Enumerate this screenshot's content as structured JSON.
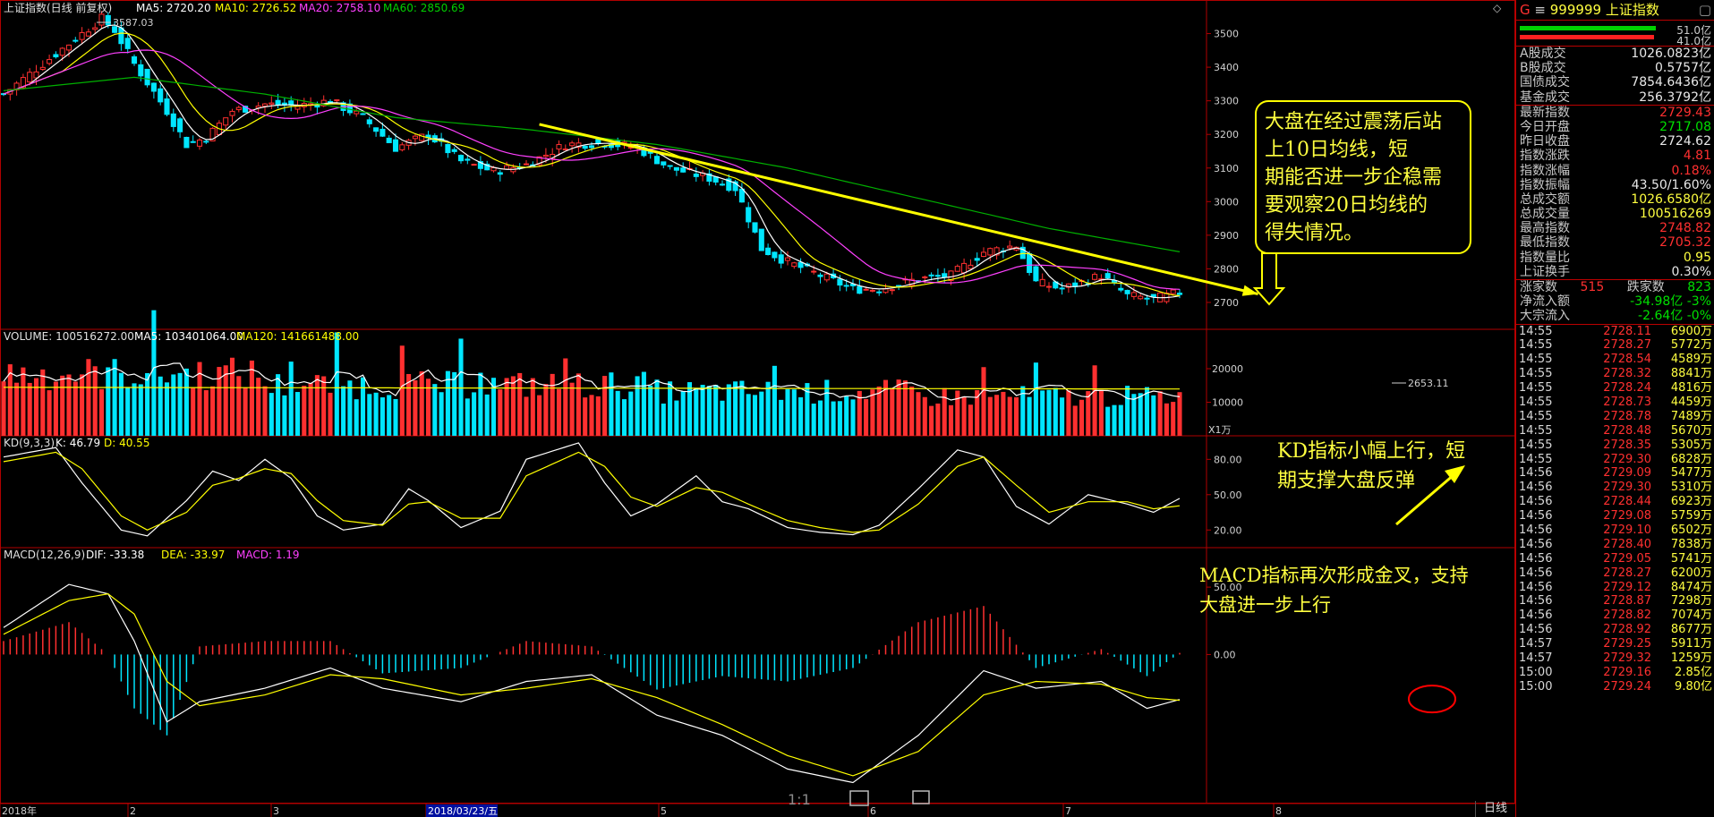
{
  "header": {
    "index_name": "上证指数(日线 前复权)",
    "ma5": "MA5: 2720.20",
    "ma10": "MA10: 2726.52",
    "ma20": "MA20: 2758.10",
    "ma60": "MA60: 2850.69",
    "high_marker": "3587.03",
    "low_marker": "2653.11"
  },
  "volume_header": {
    "volume": "VOLUME: 100516272.00",
    "ma5": "MA5: 103401064.00",
    "ma120": "MA120: 141661488.00",
    "unit": "X1万"
  },
  "kd_header": {
    "name": "KD(9,3,3)",
    "k": "K: 46.79",
    "d": "D: 40.55"
  },
  "macd_header": {
    "name": "MACD(12,26,9)",
    "dif": "DIF: -33.38",
    "dea": "DEA: -33.97",
    "macd": "MACD: 1.19"
  },
  "annotations": {
    "main": "大盘在经过震荡后站上10日均线，短期能否进一步企稳需要观察20日均线的得失情况。",
    "kd": "KD指标小幅上行，短期支撑大盘反弹",
    "macd": "MACD指标再次形成金叉，支持大盘进一步上行"
  },
  "chart_data": [
    {
      "type": "candlestick",
      "title": "上证指数(日线 前复权)",
      "y_ticks": [
        3500,
        3400,
        3300,
        3200,
        3100,
        3000,
        2900,
        2800,
        2700
      ],
      "ylim": [
        2620,
        3600
      ],
      "x_ticks": [
        "2018年",
        "2",
        "3",
        "2018/03/23/五",
        "5",
        "6",
        "7",
        "8"
      ],
      "close_anchors": [
        [
          0,
          3320
        ],
        [
          5,
          3395
        ],
        [
          10,
          3470
        ],
        [
          15,
          3545
        ],
        [
          17,
          3510
        ],
        [
          20,
          3410
        ],
        [
          25,
          3270
        ],
        [
          28,
          3170
        ],
        [
          31,
          3190
        ],
        [
          35,
          3270
        ],
        [
          40,
          3290
        ],
        [
          45,
          3285
        ],
        [
          50,
          3300
        ],
        [
          55,
          3250
        ],
        [
          60,
          3160
        ],
        [
          65,
          3200
        ],
        [
          70,
          3120
        ],
        [
          75,
          3090
        ],
        [
          80,
          3110
        ],
        [
          86,
          3170
        ],
        [
          92,
          3175
        ],
        [
          97,
          3160
        ],
        [
          102,
          3100
        ],
        [
          108,
          3070
        ],
        [
          112,
          3040
        ],
        [
          116,
          2860
        ],
        [
          120,
          2820
        ],
        [
          125,
          2780
        ],
        [
          130,
          2740
        ],
        [
          134,
          2740
        ],
        [
          140,
          2770
        ],
        [
          145,
          2780
        ],
        [
          150,
          2850
        ],
        [
          155,
          2870
        ],
        [
          158,
          2760
        ],
        [
          162,
          2740
        ],
        [
          168,
          2780
        ],
        [
          172,
          2720
        ],
        [
          176,
          2710
        ],
        [
          180,
          2729.43
        ]
      ],
      "ma60_anchors": [
        [
          0,
          3330
        ],
        [
          20,
          3370
        ],
        [
          40,
          3320
        ],
        [
          60,
          3250
        ],
        [
          80,
          3215
        ],
        [
          100,
          3170
        ],
        [
          120,
          3100
        ],
        [
          140,
          3010
        ],
        [
          160,
          2920
        ],
        [
          180,
          2850.69
        ]
      ],
      "trendline": {
        "from": [
          82,
          3230
        ],
        "to": [
          192,
          2725
        ]
      },
      "series": [
        {
          "name": "MA5",
          "value": 2720.2
        },
        {
          "name": "MA10",
          "value": 2726.52
        },
        {
          "name": "MA20",
          "value": 2758.1
        },
        {
          "name": "MA60",
          "value": 2850.69
        }
      ]
    },
    {
      "type": "bar",
      "title": "VOLUME",
      "y_ticks": [
        20000,
        10000
      ],
      "ylim": [
        0,
        28000
      ],
      "unit": "X1万",
      "ma120": 14166,
      "ma5": 10340
    },
    {
      "type": "line",
      "title": "KD(9,3,3)",
      "y_ticks": [
        80.0,
        50.0,
        20.0
      ],
      "ylim": [
        5,
        100
      ],
      "k_anchors": [
        [
          0,
          82
        ],
        [
          8,
          90
        ],
        [
          12,
          60
        ],
        [
          18,
          20
        ],
        [
          22,
          15
        ],
        [
          28,
          45
        ],
        [
          32,
          70
        ],
        [
          36,
          62
        ],
        [
          40,
          80
        ],
        [
          44,
          64
        ],
        [
          48,
          32
        ],
        [
          52,
          20
        ],
        [
          58,
          25
        ],
        [
          62,
          55
        ],
        [
          65,
          45
        ],
        [
          70,
          22
        ],
        [
          76,
          36
        ],
        [
          80,
          80
        ],
        [
          88,
          94
        ],
        [
          92,
          60
        ],
        [
          96,
          32
        ],
        [
          100,
          42
        ],
        [
          106,
          66
        ],
        [
          110,
          44
        ],
        [
          114,
          38
        ],
        [
          120,
          22
        ],
        [
          125,
          18
        ],
        [
          130,
          16
        ],
        [
          134,
          24
        ],
        [
          140,
          55
        ],
        [
          146,
          88
        ],
        [
          150,
          82
        ],
        [
          155,
          40
        ],
        [
          160,
          25
        ],
        [
          166,
          50
        ],
        [
          172,
          42
        ],
        [
          176,
          35
        ],
        [
          180,
          46.79
        ]
      ],
      "d_anchors": [
        [
          0,
          78
        ],
        [
          8,
          86
        ],
        [
          12,
          72
        ],
        [
          18,
          32
        ],
        [
          22,
          20
        ],
        [
          28,
          35
        ],
        [
          32,
          58
        ],
        [
          36,
          64
        ],
        [
          40,
          72
        ],
        [
          44,
          68
        ],
        [
          48,
          45
        ],
        [
          52,
          28
        ],
        [
          58,
          24
        ],
        [
          62,
          42
        ],
        [
          65,
          44
        ],
        [
          70,
          30
        ],
        [
          76,
          30
        ],
        [
          80,
          66
        ],
        [
          88,
          86
        ],
        [
          92,
          74
        ],
        [
          96,
          48
        ],
        [
          100,
          40
        ],
        [
          106,
          56
        ],
        [
          110,
          52
        ],
        [
          114,
          42
        ],
        [
          120,
          28
        ],
        [
          125,
          22
        ],
        [
          130,
          18
        ],
        [
          134,
          20
        ],
        [
          140,
          42
        ],
        [
          146,
          74
        ],
        [
          150,
          82
        ],
        [
          155,
          58
        ],
        [
          160,
          35
        ],
        [
          166,
          44
        ],
        [
          172,
          44
        ],
        [
          176,
          38
        ],
        [
          180,
          40.55
        ]
      ]
    },
    {
      "type": "line",
      "title": "MACD(12,26,9)",
      "y_ticks": [
        50.0,
        0.0
      ],
      "ylim": [
        -100,
        70
      ],
      "dif_anchors": [
        [
          0,
          20
        ],
        [
          10,
          52
        ],
        [
          16,
          45
        ],
        [
          20,
          10
        ],
        [
          25,
          -50
        ],
        [
          30,
          -35
        ],
        [
          40,
          -25
        ],
        [
          50,
          -10
        ],
        [
          58,
          -25
        ],
        [
          70,
          -35
        ],
        [
          80,
          -20
        ],
        [
          90,
          -15
        ],
        [
          100,
          -45
        ],
        [
          110,
          -60
        ],
        [
          120,
          -85
        ],
        [
          130,
          -95
        ],
        [
          140,
          -60
        ],
        [
          150,
          -12
        ],
        [
          158,
          -25
        ],
        [
          168,
          -20
        ],
        [
          175,
          -40
        ],
        [
          180,
          -33.38
        ]
      ],
      "dea_anchors": [
        [
          0,
          15
        ],
        [
          10,
          40
        ],
        [
          16,
          45
        ],
        [
          20,
          30
        ],
        [
          25,
          -20
        ],
        [
          30,
          -38
        ],
        [
          40,
          -30
        ],
        [
          50,
          -15
        ],
        [
          58,
          -18
        ],
        [
          70,
          -30
        ],
        [
          80,
          -25
        ],
        [
          90,
          -18
        ],
        [
          100,
          -32
        ],
        [
          110,
          -52
        ],
        [
          120,
          -75
        ],
        [
          130,
          -90
        ],
        [
          140,
          -72
        ],
        [
          150,
          -30
        ],
        [
          158,
          -20
        ],
        [
          168,
          -22
        ],
        [
          175,
          -32
        ],
        [
          180,
          -33.97
        ]
      ]
    }
  ],
  "sidebar": {
    "code": "999999",
    "name": "上证指数",
    "top_marker": "G",
    "bar_right_1": "51.0亿",
    "bar_right_2": "41.0亿",
    "rows_a": [
      {
        "label": "A股成交",
        "value": "1026.0823亿",
        "cls": "wht"
      },
      {
        "label": "B股成交",
        "value": "0.5757亿",
        "cls": "wht"
      },
      {
        "label": "国债成交",
        "value": "7854.6436亿",
        "cls": "wht"
      },
      {
        "label": "基金成交",
        "value": "256.3792亿",
        "cls": "wht"
      }
    ],
    "rows_b": [
      {
        "label": "最新指数",
        "value": "2729.43",
        "cls": "red"
      },
      {
        "label": "今日开盘",
        "value": "2717.08",
        "cls": "grn"
      },
      {
        "label": "昨日收盘",
        "value": "2724.62",
        "cls": "wht"
      },
      {
        "label": "指数涨跌",
        "value": "4.81",
        "cls": "red"
      },
      {
        "label": "指数涨幅",
        "value": "0.18%",
        "cls": "red"
      },
      {
        "label": "指数振幅",
        "value": "43.50/1.60%",
        "cls": "wht"
      },
      {
        "label": "总成交额",
        "value": "1026.6580亿",
        "cls": "yel"
      },
      {
        "label": "总成交量",
        "value": "100516269",
        "cls": "yel"
      },
      {
        "label": "最高指数",
        "value": "2748.82",
        "cls": "red"
      },
      {
        "label": "最低指数",
        "value": "2705.32",
        "cls": "red"
      },
      {
        "label": "指数量比",
        "value": "0.95",
        "cls": "yel"
      },
      {
        "label": "上证换手",
        "value": "0.30%",
        "cls": "wht"
      }
    ],
    "breadth": {
      "up_label": "涨家数",
      "up": "515",
      "down_label": "跌家数",
      "down": "823"
    },
    "flows": [
      {
        "label": "净流入额",
        "value": "-34.98亿",
        "pct": "-3%"
      },
      {
        "label": "大宗流入",
        "value": "-2.64亿",
        "pct": "-0%"
      }
    ],
    "ticks": [
      [
        "14:55",
        "2728.11",
        "6900万"
      ],
      [
        "14:55",
        "2728.27",
        "5772万"
      ],
      [
        "14:55",
        "2728.54",
        "4589万"
      ],
      [
        "14:55",
        "2728.32",
        "8841万"
      ],
      [
        "14:55",
        "2728.24",
        "4816万"
      ],
      [
        "14:55",
        "2728.73",
        "4459万"
      ],
      [
        "14:55",
        "2728.78",
        "7489万"
      ],
      [
        "14:55",
        "2728.48",
        "5670万"
      ],
      [
        "14:55",
        "2728.35",
        "5305万"
      ],
      [
        "14:55",
        "2729.30",
        "6828万"
      ],
      [
        "14:56",
        "2729.09",
        "5477万"
      ],
      [
        "14:56",
        "2729.30",
        "5310万"
      ],
      [
        "14:56",
        "2728.44",
        "6923万"
      ],
      [
        "14:56",
        "2729.08",
        "5759万"
      ],
      [
        "14:56",
        "2729.10",
        "6502万"
      ],
      [
        "14:56",
        "2728.40",
        "7838万"
      ],
      [
        "14:56",
        "2729.05",
        "5741万"
      ],
      [
        "14:56",
        "2728.27",
        "6200万"
      ],
      [
        "14:56",
        "2729.12",
        "8474万"
      ],
      [
        "14:56",
        "2728.87",
        "7298万"
      ],
      [
        "14:56",
        "2728.82",
        "7074万"
      ],
      [
        "14:56",
        "2728.92",
        "8677万"
      ],
      [
        "14:57",
        "2729.25",
        "5911万"
      ],
      [
        "14:57",
        "2729.32",
        "1259万"
      ],
      [
        "15:00",
        "2729.16",
        "2.85亿"
      ],
      [
        "15:00",
        "2729.24",
        "9.80亿"
      ]
    ]
  },
  "bottom": {
    "period_tab": "日线",
    "zoom_label": "1:1"
  }
}
